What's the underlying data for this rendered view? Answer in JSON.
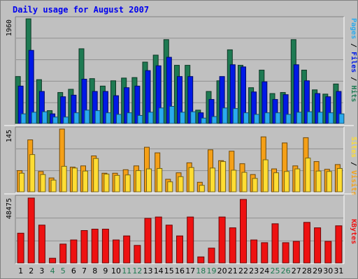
{
  "chart_data": [
    {
      "type": "bar",
      "title": "Daily usage for August 2007",
      "categories": [
        "1",
        "2",
        "3",
        "4",
        "5",
        "6",
        "7",
        "8",
        "9",
        "10",
        "11",
        "12",
        "13",
        "14",
        "15",
        "16",
        "17",
        "18",
        "19",
        "20",
        "21",
        "22",
        "23",
        "24",
        "25",
        "26",
        "27",
        "28",
        "29",
        "30",
        "31"
      ],
      "weekend_categories": [
        "4",
        "5",
        "11",
        "12",
        "18",
        "19",
        "25",
        "26"
      ],
      "ylim": [
        0,
        1960
      ],
      "y_tick_label": "1960",
      "right_labels": [
        "Pages",
        "Files",
        "Hits"
      ],
      "series": [
        {
          "name": "Hits",
          "color": "#1e7a52",
          "values": [
            880,
            1960,
            820,
            240,
            580,
            640,
            1400,
            840,
            700,
            800,
            850,
            860,
            1150,
            1280,
            1570,
            1090,
            1090,
            250,
            600,
            800,
            1380,
            1090,
            670,
            1000,
            560,
            580,
            1570,
            1000,
            630,
            550,
            740
          ]
        },
        {
          "name": "Files",
          "color": "#0019e6",
          "values": [
            700,
            1370,
            600,
            180,
            500,
            530,
            830,
            600,
            600,
            520,
            670,
            700,
            990,
            1080,
            1240,
            880,
            880,
            200,
            450,
            880,
            1100,
            1060,
            590,
            780,
            450,
            540,
            1100,
            800,
            560,
            500,
            600
          ]
        },
        {
          "name": "Pages",
          "color": "#2aaaee",
          "values": [
            180,
            210,
            220,
            120,
            120,
            200,
            250,
            240,
            200,
            170,
            200,
            150,
            210,
            290,
            320,
            210,
            220,
            100,
            130,
            290,
            280,
            200,
            170,
            200,
            200,
            170,
            210,
            220,
            210,
            200,
            180
          ]
        }
      ]
    },
    {
      "type": "bar",
      "ylim": [
        0,
        145
      ],
      "y_tick_label": "145",
      "right_labels": [
        "Sites",
        "Visits"
      ],
      "series": [
        {
          "name": "Visits",
          "color": "#f5a017",
          "values": [
            49,
            120,
            47,
            32,
            145,
            57,
            60,
            83,
            43,
            43,
            51,
            60,
            103,
            90,
            29,
            44,
            67,
            22,
            97,
            72,
            94,
            65,
            40,
            127,
            53,
            113,
            60,
            125,
            70,
            52,
            63
          ]
        },
        {
          "name": "Sites",
          "color": "#ffdd33",
          "values": [
            43,
            86,
            40,
            27,
            59,
            55,
            48,
            77,
            41,
            38,
            39,
            49,
            53,
            54,
            23,
            35,
            56,
            15,
            55,
            70,
            50,
            45,
            31,
            74,
            44,
            47,
            53,
            78,
            48,
            47,
            54
          ]
        }
      ]
    },
    {
      "type": "bar",
      "ylim": [
        0,
        48475
      ],
      "y_tick_label": "48475",
      "right_labels": [
        "KBytes"
      ],
      "series": [
        {
          "name": "KBytes",
          "color": "#ee1111",
          "values": [
            22000,
            48000,
            28000,
            3500,
            14000,
            17000,
            24000,
            25000,
            25000,
            17000,
            20000,
            13000,
            33000,
            34000,
            28000,
            20000,
            34000,
            4500,
            11000,
            34000,
            26000,
            47000,
            17000,
            15000,
            29000,
            15000,
            16000,
            30000,
            26000,
            16000,
            27500
          ]
        }
      ]
    }
  ],
  "colors": {
    "background": "#c0c0c0",
    "frame_light": "#ffffff",
    "frame_dark": "#808080",
    "title": "#0000ee",
    "weekday_label": "#000000",
    "weekend_label": "#1e7a52",
    "grid": "#909090",
    "separator": "#ffffff"
  }
}
